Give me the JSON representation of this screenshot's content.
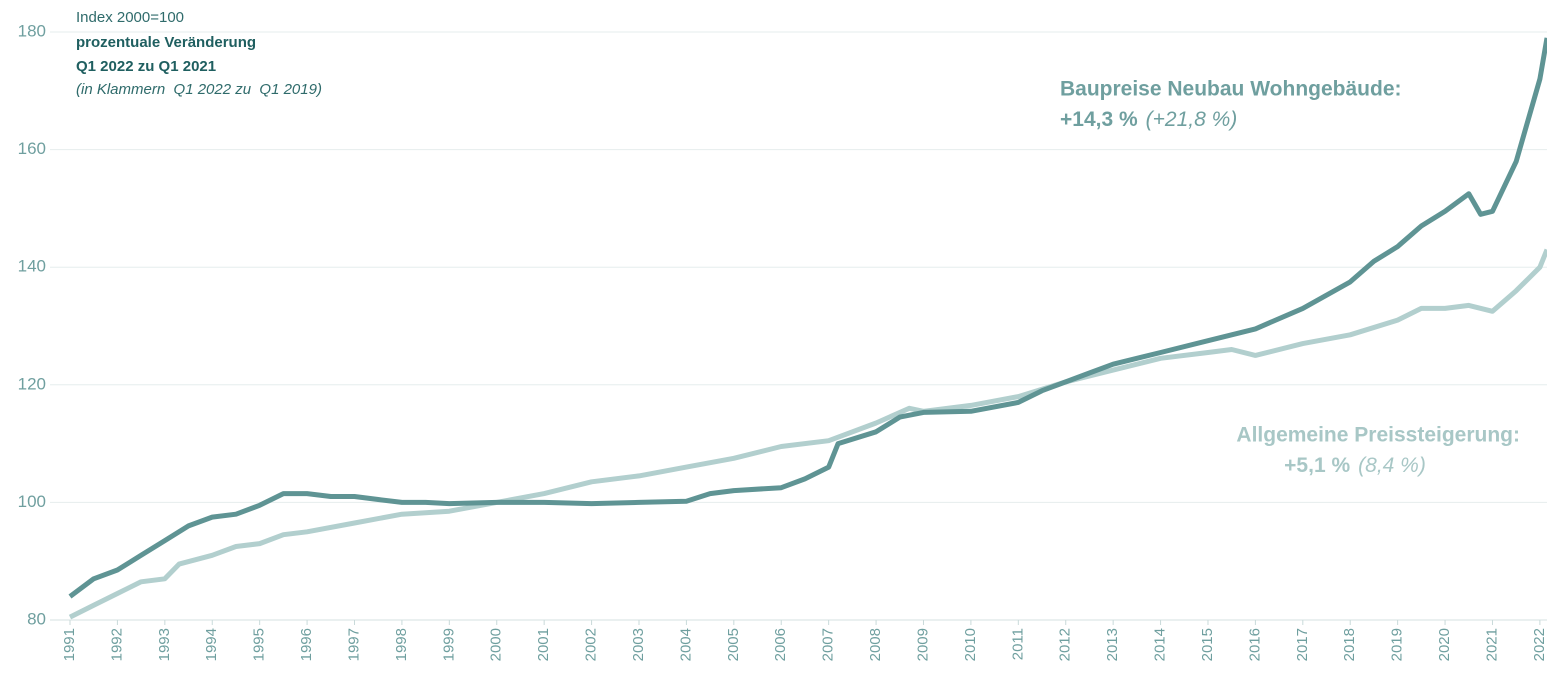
{
  "chart_data": {
    "type": "line",
    "notes": [
      "Index 2000=100",
      "prozentuale Veränderung",
      "Q1 2022 zu Q1 2021",
      "(in Klammern  Q1 2022 zu  Q1 2019)"
    ],
    "xlim": [
      1991,
      2022.15
    ],
    "xticks": [
      1991,
      1992,
      1993,
      1994,
      1995,
      1996,
      1997,
      1998,
      1999,
      2000,
      2001,
      2002,
      2003,
      2004,
      2005,
      2006,
      2007,
      2008,
      2009,
      2010,
      2011,
      2012,
      2013,
      2014,
      2015,
      2016,
      2017,
      2018,
      2019,
      2020,
      2021,
      2022
    ],
    "ylim": [
      80,
      180
    ],
    "yticks": [
      80,
      100,
      120,
      140,
      160,
      180
    ],
    "grid": true,
    "series": [
      {
        "name": "Baupreise Neubau Wohngebäude:",
        "change": "+14,3 %",
        "change_detail": "(+21,8 %)",
        "color": "#5f9494",
        "x": [
          1991,
          1991.5,
          1992,
          1992.5,
          1993,
          1993.5,
          1994,
          1994.5,
          1995,
          1995.5,
          1996,
          1996.5,
          1997,
          1997.5,
          1998,
          1998.5,
          1999,
          2000,
          2001,
          2002,
          2003,
          2004,
          2004.5,
          2005,
          2006,
          2006.5,
          2007,
          2007.2,
          2008,
          2008.5,
          2009,
          2010,
          2011,
          2011.5,
          2012,
          2012.5,
          2013,
          2014,
          2015,
          2016,
          2017,
          2018,
          2018.5,
          2019,
          2019.5,
          2020,
          2020.5,
          2020.75,
          2021,
          2021.5,
          2022,
          2022.15
        ],
        "values": [
          84,
          87,
          88.5,
          91,
          93.5,
          96,
          97.5,
          98,
          99.5,
          101.5,
          101.5,
          101,
          101,
          100.5,
          100,
          100,
          99.8,
          100,
          100,
          99.8,
          100,
          100.2,
          101.5,
          102,
          102.5,
          104,
          106,
          110,
          112,
          114.5,
          115.3,
          115.5,
          117,
          119,
          120.5,
          122,
          123.5,
          125.5,
          127.5,
          129.5,
          133,
          137.5,
          141,
          143.5,
          147,
          149.5,
          152.5,
          149,
          149.5,
          158,
          172,
          179
        ]
      },
      {
        "name": "Allgemeine Preissteigerung:",
        "change": "+5,1 %",
        "change_detail": "(8,4 %)",
        "color": "#b2cfce",
        "x": [
          1991,
          1991.5,
          1992,
          1992.5,
          1993,
          1993.3,
          1994,
          1994.5,
          1995,
          1995.5,
          1996,
          1997,
          1998,
          1999,
          2000,
          2001,
          2002,
          2003,
          2004,
          2005,
          2006,
          2007,
          2008,
          2008.7,
          2009,
          2010,
          2011,
          2012,
          2013,
          2014,
          2015,
          2015.5,
          2016,
          2017,
          2018,
          2019,
          2019.5,
          2020,
          2020.5,
          2021,
          2021.5,
          2022,
          2022.15
        ],
        "values": [
          80.5,
          82.5,
          84.5,
          86.5,
          87,
          89.5,
          91,
          92.5,
          93,
          94.5,
          95,
          96.5,
          98,
          98.5,
          100,
          101.5,
          103.5,
          104.5,
          106,
          107.5,
          109.5,
          110.5,
          113.5,
          116,
          115.5,
          116.5,
          118,
          120.5,
          122.5,
          124.5,
          125.5,
          126,
          125,
          127,
          128.5,
          131,
          133,
          133,
          133.5,
          132.5,
          136,
          140,
          143
        ]
      }
    ]
  }
}
